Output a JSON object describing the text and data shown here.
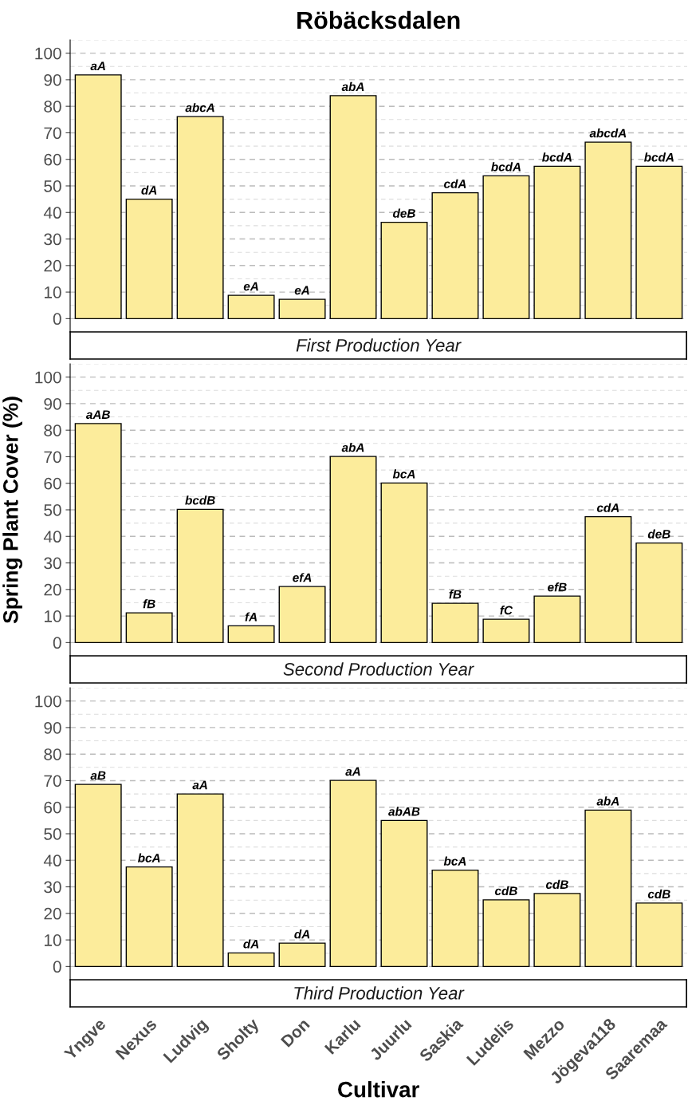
{
  "chart_data": [
    {
      "type": "bar",
      "title": "Röbäcksdalen",
      "subtitle": "First Production Year",
      "categories": [
        null,
        null,
        null,
        null,
        null,
        null,
        null,
        null,
        null,
        null,
        null,
        null
      ],
      "values": [
        91.8,
        45,
        76.1,
        8.8,
        7.3,
        84,
        36.3,
        47.4,
        53.8,
        57.4,
        66.5,
        57.4
      ],
      "value_labels": [
        "aA",
        "dA",
        "abcA",
        "eA",
        "eA",
        "abA",
        "deB",
        "cdA",
        "bcdA",
        "bcdA",
        "abcdA",
        "bcdA"
      ],
      "color": "#fcec9b",
      "ylim": [
        -5,
        105
      ],
      "yticks": [
        0,
        10,
        20,
        30,
        40,
        50,
        60,
        70,
        80,
        90,
        100
      ],
      "grid": "y",
      "tick_labels": "y"
    },
    {
      "type": "bar",
      "subtitle": "Second Production Year",
      "ylabel": "Spring Plant Cover (%)",
      "categories": [
        null,
        null,
        null,
        null,
        null,
        null,
        null,
        null,
        null,
        null,
        null,
        null
      ],
      "values": [
        82.5,
        11.2,
        50.2,
        6.3,
        21.1,
        70.1,
        60.1,
        14.8,
        8.8,
        17.5,
        47.4,
        37.5
      ],
      "value_labels": [
        "aAB",
        "fB",
        "bcdB",
        "fA",
        "efA",
        "abA",
        "bcA",
        "fB",
        "fC",
        "efB",
        "cdA",
        "deB"
      ],
      "color": "#fcec9b",
      "ylim": [
        -5,
        105
      ],
      "yticks": [
        0,
        10,
        20,
        30,
        40,
        50,
        60,
        70,
        80,
        90,
        100
      ],
      "grid": "y",
      "tick_labels": "y"
    },
    {
      "type": "bar",
      "subtitle": "Third Production Year",
      "xlabel": "Cultivar",
      "categories": [
        "Yngve",
        "Nexus",
        "Ludvig",
        "Sholty",
        "Don",
        "Karlu",
        "Juurlu",
        "Saskia",
        "Ludelis",
        "Mezzo",
        "Jögeva118",
        "Saaremaa"
      ],
      "values": [
        68.6,
        37.5,
        65,
        5.1,
        8.8,
        70.1,
        55,
        36.3,
        25.1,
        27.5,
        58.9,
        23.9
      ],
      "value_labels": [
        "aB",
        "bcA",
        "aA",
        "dA",
        "dA",
        "aA",
        "abAB",
        "bcA",
        "cdB",
        "cdB",
        "abA",
        "cdB"
      ],
      "color": "#fcec9b",
      "ylim": [
        -5,
        105
      ],
      "yticks": [
        0,
        10,
        20,
        30,
        40,
        50,
        60,
        70,
        80,
        90,
        100
      ],
      "grid": "y"
    }
  ]
}
